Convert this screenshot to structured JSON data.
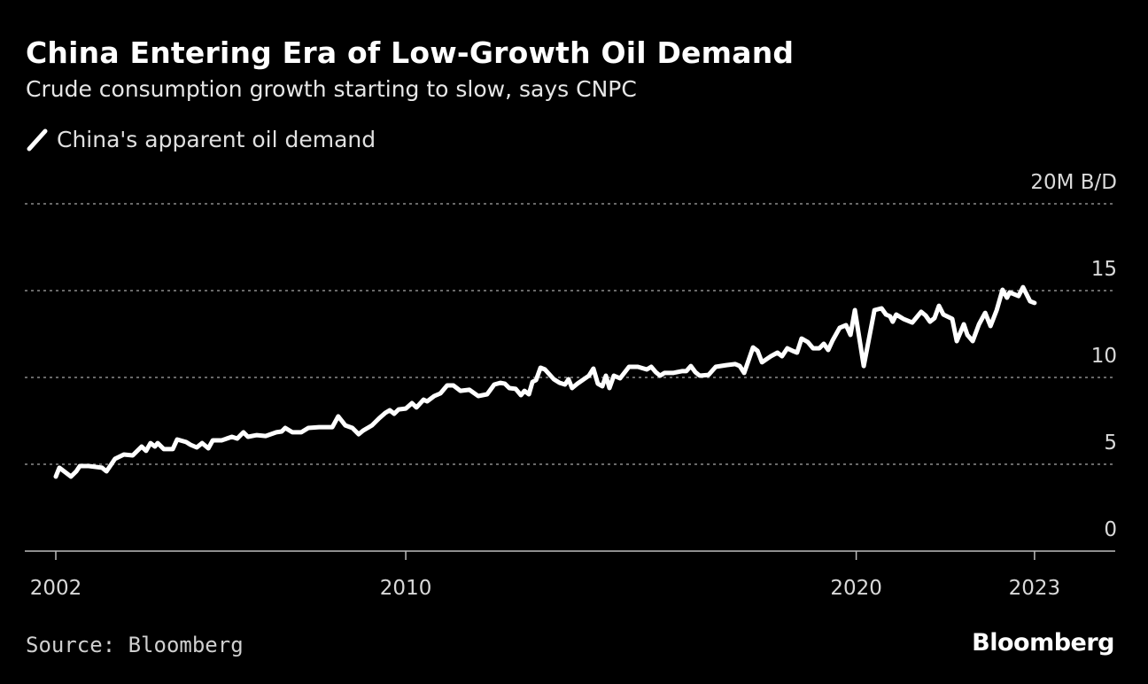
{
  "header": {
    "title": "China Entering Era of Low-Growth Oil Demand",
    "subtitle": "Crude consumption growth starting to slow, says CNPC"
  },
  "footer": {
    "source": "Source: Bloomberg",
    "logo": "Bloomberg"
  },
  "colors": {
    "background": "#000000",
    "line": "#ffffff",
    "grid": "#8c8c8c",
    "text": "#d9d9d9"
  },
  "chart_data": {
    "type": "line",
    "title": "China Entering Era of Low-Growth Oil Demand",
    "subtitle": "Crude consumption growth starting to slow, says CNPC",
    "legend": [
      "China's apparent oil demand"
    ],
    "legend_position": "top-left",
    "ylabel": "20M B/D",
    "xlabel": "",
    "ylim": [
      0,
      20
    ],
    "yticks": [
      0,
      5,
      10,
      15,
      20
    ],
    "ytick_labels": [
      "0",
      "5",
      "10",
      "15",
      "20M B/D"
    ],
    "xticks": [
      2002,
      2009.87,
      2020,
      2024.01
    ],
    "xtick_labels": [
      "2002",
      "2010",
      "2020",
      "2023"
    ],
    "grid": true,
    "series": [
      {
        "name": "China's apparent oil demand",
        "points": [
          [
            2002.0,
            4.29
          ],
          [
            2002.08,
            4.8
          ],
          [
            2002.34,
            4.29
          ],
          [
            2002.46,
            4.59
          ],
          [
            2002.54,
            4.9
          ],
          [
            2002.74,
            4.9
          ],
          [
            2003.04,
            4.8
          ],
          [
            2003.14,
            4.59
          ],
          [
            2003.33,
            5.31
          ],
          [
            2003.53,
            5.56
          ],
          [
            2003.73,
            5.51
          ],
          [
            2003.93,
            6.02
          ],
          [
            2004.03,
            5.77
          ],
          [
            2004.13,
            6.22
          ],
          [
            2004.23,
            6.02
          ],
          [
            2004.29,
            6.22
          ],
          [
            2004.43,
            5.87
          ],
          [
            2004.63,
            5.87
          ],
          [
            2004.73,
            6.43
          ],
          [
            2004.93,
            6.28
          ],
          [
            2005.03,
            6.12
          ],
          [
            2005.17,
            5.97
          ],
          [
            2005.29,
            6.22
          ],
          [
            2005.43,
            5.92
          ],
          [
            2005.53,
            6.38
          ],
          [
            2005.73,
            6.38
          ],
          [
            2005.96,
            6.58
          ],
          [
            2006.08,
            6.48
          ],
          [
            2006.22,
            6.84
          ],
          [
            2006.32,
            6.58
          ],
          [
            2006.52,
            6.68
          ],
          [
            2006.72,
            6.63
          ],
          [
            2006.96,
            6.84
          ],
          [
            2007.08,
            6.89
          ],
          [
            2007.16,
            7.09
          ],
          [
            2007.32,
            6.84
          ],
          [
            2007.52,
            6.84
          ],
          [
            2007.68,
            7.09
          ],
          [
            2007.92,
            7.14
          ],
          [
            2008.22,
            7.14
          ],
          [
            2008.35,
            7.76
          ],
          [
            2008.51,
            7.24
          ],
          [
            2008.67,
            7.09
          ],
          [
            2008.81,
            6.73
          ],
          [
            2008.91,
            6.94
          ],
          [
            2009.11,
            7.24
          ],
          [
            2009.27,
            7.65
          ],
          [
            2009.41,
            7.96
          ],
          [
            2009.51,
            8.11
          ],
          [
            2009.61,
            7.91
          ],
          [
            2009.71,
            8.16
          ],
          [
            2009.87,
            8.21
          ],
          [
            2010.01,
            8.52
          ],
          [
            2010.11,
            8.27
          ],
          [
            2010.27,
            8.72
          ],
          [
            2010.35,
            8.62
          ],
          [
            2010.51,
            8.93
          ],
          [
            2010.65,
            9.08
          ],
          [
            2010.8,
            9.54
          ],
          [
            2010.94,
            9.54
          ],
          [
            2011.1,
            9.23
          ],
          [
            2011.3,
            9.29
          ],
          [
            2011.5,
            8.93
          ],
          [
            2011.7,
            9.03
          ],
          [
            2011.86,
            9.59
          ],
          [
            2012.0,
            9.69
          ],
          [
            2012.1,
            9.64
          ],
          [
            2012.2,
            9.39
          ],
          [
            2012.34,
            9.34
          ],
          [
            2012.46,
            8.98
          ],
          [
            2012.54,
            9.23
          ],
          [
            2012.64,
            9.03
          ],
          [
            2012.72,
            9.74
          ],
          [
            2012.8,
            9.85
          ],
          [
            2012.9,
            10.56
          ],
          [
            2013.0,
            10.46
          ],
          [
            2013.2,
            9.9
          ],
          [
            2013.33,
            9.69
          ],
          [
            2013.45,
            9.59
          ],
          [
            2013.53,
            9.9
          ],
          [
            2013.61,
            9.39
          ],
          [
            2013.73,
            9.64
          ],
          [
            2013.99,
            10.1
          ],
          [
            2014.09,
            10.51
          ],
          [
            2014.19,
            9.64
          ],
          [
            2014.29,
            9.49
          ],
          [
            2014.37,
            10.1
          ],
          [
            2014.45,
            9.39
          ],
          [
            2014.55,
            10.1
          ],
          [
            2014.69,
            9.95
          ],
          [
            2014.89,
            10.61
          ],
          [
            2015.09,
            10.61
          ],
          [
            2015.29,
            10.46
          ],
          [
            2015.39,
            10.61
          ],
          [
            2015.49,
            10.31
          ],
          [
            2015.59,
            10.1
          ],
          [
            2015.69,
            10.26
          ],
          [
            2015.88,
            10.26
          ],
          [
            2016.08,
            10.36
          ],
          [
            2016.18,
            10.36
          ],
          [
            2016.28,
            10.66
          ],
          [
            2016.38,
            10.31
          ],
          [
            2016.48,
            10.1
          ],
          [
            2016.68,
            10.15
          ],
          [
            2016.84,
            10.61
          ],
          [
            2017.08,
            10.71
          ],
          [
            2017.28,
            10.77
          ],
          [
            2017.38,
            10.66
          ],
          [
            2017.48,
            10.26
          ],
          [
            2017.68,
            11.73
          ],
          [
            2017.78,
            11.53
          ],
          [
            2017.88,
            10.87
          ],
          [
            2018.08,
            11.22
          ],
          [
            2018.23,
            11.43
          ],
          [
            2018.33,
            11.22
          ],
          [
            2018.45,
            11.68
          ],
          [
            2018.57,
            11.53
          ],
          [
            2018.67,
            11.43
          ],
          [
            2018.77,
            12.24
          ],
          [
            2018.91,
            12.04
          ],
          [
            2019.03,
            11.68
          ],
          [
            2019.17,
            11.68
          ],
          [
            2019.27,
            11.94
          ],
          [
            2019.37,
            11.58
          ],
          [
            2019.47,
            12.14
          ],
          [
            2019.63,
            12.86
          ],
          [
            2019.77,
            13.01
          ],
          [
            2019.87,
            12.45
          ],
          [
            2019.97,
            13.88
          ],
          [
            2020.17,
            10.66
          ],
          [
            2020.41,
            13.88
          ],
          [
            2020.57,
            13.98
          ],
          [
            2020.67,
            13.62
          ],
          [
            2020.76,
            13.52
          ],
          [
            2020.82,
            13.21
          ],
          [
            2020.9,
            13.62
          ],
          [
            2021.06,
            13.37
          ],
          [
            2021.26,
            13.16
          ],
          [
            2021.36,
            13.47
          ],
          [
            2021.46,
            13.78
          ],
          [
            2021.56,
            13.57
          ],
          [
            2021.66,
            13.21
          ],
          [
            2021.76,
            13.42
          ],
          [
            2021.86,
            14.13
          ],
          [
            2021.96,
            13.62
          ],
          [
            2022.16,
            13.37
          ],
          [
            2022.26,
            12.09
          ],
          [
            2022.42,
            13.06
          ],
          [
            2022.5,
            12.45
          ],
          [
            2022.62,
            12.09
          ],
          [
            2022.76,
            13.06
          ],
          [
            2022.9,
            13.72
          ],
          [
            2023.02,
            12.96
          ],
          [
            2023.16,
            13.88
          ],
          [
            2023.29,
            15.05
          ],
          [
            2023.39,
            14.59
          ],
          [
            2023.45,
            14.9
          ],
          [
            2023.65,
            14.69
          ],
          [
            2023.75,
            15.2
          ],
          [
            2023.85,
            14.69
          ],
          [
            2023.91,
            14.39
          ],
          [
            2024.01,
            14.29
          ]
        ]
      }
    ]
  }
}
